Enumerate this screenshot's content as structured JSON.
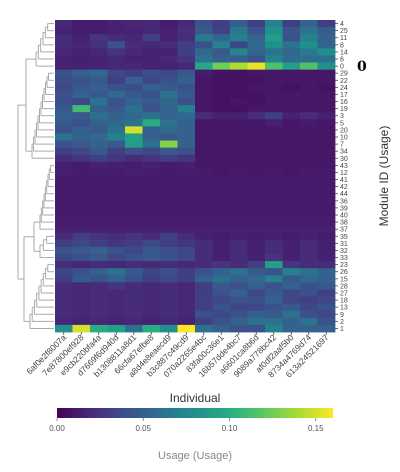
{
  "chart_data": {
    "type": "heatmap",
    "xlabel": "Individual",
    "ylabel": "Module ID (Usage)",
    "x_tick_labels": [
      "6af0e2f8007a",
      "7e87800ef928",
      "e9cb220bfa4a",
      "d7669f6d940d",
      "b1308811a8d1",
      "66cfa67efbe8",
      "a8d4e8eaecd9",
      "b3c887c49cd9",
      "070a2265e4bc",
      "83fa00c36e1",
      "16b57dde4bc7",
      "a6601ca8b6d",
      "9089a778bc42",
      "af0df2aaf5b0",
      "8734a4769d74",
      "613a24521697"
    ],
    "rows": [
      "4",
      "25",
      "11",
      "8",
      "14",
      "6",
      "0",
      "29",
      "22",
      "24",
      "17",
      "16",
      "19",
      "3",
      "5",
      "20",
      "10",
      "7",
      "34",
      "30",
      "43",
      "12",
      "41",
      "42",
      "44",
      "36",
      "39",
      "40",
      "38",
      "37",
      "35",
      "31",
      "32",
      "33",
      "23",
      "26",
      "15",
      "28",
      "27",
      "18",
      "13",
      "9",
      "2",
      "1"
    ],
    "highlight_row": "0",
    "colorbar": {
      "title": "Usage (Usage)",
      "min": 0.0,
      "max": 0.16,
      "ticks": [
        "0.00",
        "0.05",
        "0.10",
        "0.15"
      ],
      "colorscale": "viridis"
    },
    "values": [
      [
        0.018,
        0.012,
        0.013,
        0.016,
        0.017,
        0.018,
        0.013,
        0.018,
        0.04,
        0.03,
        0.048,
        0.03,
        0.07,
        0.03,
        0.052,
        0.03
      ],
      [
        0.016,
        0.013,
        0.013,
        0.015,
        0.016,
        0.017,
        0.014,
        0.022,
        0.045,
        0.032,
        0.065,
        0.04,
        0.08,
        0.042,
        0.062,
        0.048
      ],
      [
        0.02,
        0.015,
        0.025,
        0.02,
        0.018,
        0.03,
        0.016,
        0.02,
        0.065,
        0.055,
        0.07,
        0.052,
        0.088,
        0.04,
        0.07,
        0.05
      ],
      [
        0.02,
        0.017,
        0.022,
        0.04,
        0.02,
        0.018,
        0.02,
        0.03,
        0.04,
        0.07,
        0.035,
        0.055,
        0.08,
        0.06,
        0.08,
        0.052
      ],
      [
        0.018,
        0.016,
        0.018,
        0.025,
        0.018,
        0.016,
        0.016,
        0.03,
        0.055,
        0.045,
        0.072,
        0.052,
        0.062,
        0.055,
        0.066,
        0.078
      ],
      [
        0.016,
        0.014,
        0.016,
        0.018,
        0.016,
        0.015,
        0.018,
        0.025,
        0.06,
        0.05,
        0.048,
        0.04,
        0.07,
        0.056,
        0.058,
        0.06
      ],
      [
        0.016,
        0.016,
        0.016,
        0.018,
        0.018,
        0.016,
        0.016,
        0.018,
        0.095,
        0.125,
        0.14,
        0.155,
        0.115,
        0.09,
        0.115,
        0.08
      ],
      [
        0.04,
        0.05,
        0.055,
        0.035,
        0.03,
        0.04,
        0.035,
        0.045,
        0.012,
        0.008,
        0.008,
        0.01,
        0.01,
        0.01,
        0.01,
        0.01
      ],
      [
        0.038,
        0.04,
        0.045,
        0.03,
        0.05,
        0.035,
        0.04,
        0.05,
        0.01,
        0.008,
        0.008,
        0.008,
        0.01,
        0.01,
        0.01,
        0.01
      ],
      [
        0.035,
        0.045,
        0.05,
        0.04,
        0.038,
        0.05,
        0.045,
        0.04,
        0.01,
        0.008,
        0.008,
        0.01,
        0.01,
        0.008,
        0.01,
        0.008
      ],
      [
        0.04,
        0.05,
        0.045,
        0.055,
        0.045,
        0.04,
        0.06,
        0.045,
        0.01,
        0.008,
        0.008,
        0.008,
        0.01,
        0.01,
        0.01,
        0.01
      ],
      [
        0.04,
        0.035,
        0.06,
        0.04,
        0.05,
        0.045,
        0.055,
        0.04,
        0.01,
        0.008,
        0.01,
        0.008,
        0.01,
        0.01,
        0.01,
        0.01
      ],
      [
        0.045,
        0.11,
        0.05,
        0.045,
        0.06,
        0.04,
        0.05,
        0.07,
        0.01,
        0.008,
        0.008,
        0.01,
        0.01,
        0.01,
        0.01,
        0.01
      ],
      [
        0.05,
        0.045,
        0.06,
        0.05,
        0.055,
        0.06,
        0.05,
        0.055,
        0.02,
        0.015,
        0.015,
        0.02,
        0.03,
        0.015,
        0.02,
        0.015
      ],
      [
        0.045,
        0.04,
        0.05,
        0.055,
        0.06,
        0.1,
        0.06,
        0.05,
        0.01,
        0.01,
        0.01,
        0.01,
        0.015,
        0.01,
        0.012,
        0.01
      ],
      [
        0.04,
        0.05,
        0.045,
        0.06,
        0.15,
        0.05,
        0.055,
        0.05,
        0.01,
        0.01,
        0.01,
        0.01,
        0.01,
        0.01,
        0.01,
        0.01
      ],
      [
        0.06,
        0.05,
        0.055,
        0.07,
        0.09,
        0.05,
        0.045,
        0.05,
        0.01,
        0.01,
        0.01,
        0.01,
        0.01,
        0.01,
        0.01,
        0.01
      ],
      [
        0.04,
        0.045,
        0.05,
        0.045,
        0.09,
        0.06,
        0.13,
        0.05,
        0.01,
        0.01,
        0.01,
        0.01,
        0.01,
        0.01,
        0.01,
        0.01
      ],
      [
        0.03,
        0.035,
        0.045,
        0.03,
        0.04,
        0.035,
        0.045,
        0.04,
        0.01,
        0.01,
        0.01,
        0.01,
        0.01,
        0.01,
        0.01,
        0.01
      ],
      [
        0.02,
        0.025,
        0.03,
        0.025,
        0.02,
        0.025,
        0.03,
        0.025,
        0.01,
        0.01,
        0.01,
        0.01,
        0.01,
        0.01,
        0.01,
        0.01
      ],
      [
        0.015,
        0.012,
        0.015,
        0.014,
        0.013,
        0.015,
        0.012,
        0.014,
        0.01,
        0.01,
        0.01,
        0.01,
        0.01,
        0.01,
        0.01,
        0.01
      ],
      [
        0.014,
        0.012,
        0.013,
        0.012,
        0.014,
        0.013,
        0.012,
        0.013,
        0.012,
        0.01,
        0.012,
        0.01,
        0.012,
        0.01,
        0.012,
        0.012
      ],
      [
        0.012,
        0.012,
        0.012,
        0.012,
        0.012,
        0.012,
        0.012,
        0.012,
        0.012,
        0.012,
        0.012,
        0.012,
        0.012,
        0.012,
        0.012,
        0.012
      ],
      [
        0.012,
        0.012,
        0.012,
        0.012,
        0.012,
        0.012,
        0.012,
        0.012,
        0.012,
        0.012,
        0.012,
        0.012,
        0.012,
        0.012,
        0.012,
        0.012
      ],
      [
        0.012,
        0.012,
        0.012,
        0.012,
        0.012,
        0.012,
        0.012,
        0.012,
        0.012,
        0.012,
        0.012,
        0.012,
        0.012,
        0.012,
        0.012,
        0.012
      ],
      [
        0.012,
        0.012,
        0.012,
        0.012,
        0.012,
        0.012,
        0.012,
        0.012,
        0.012,
        0.012,
        0.012,
        0.012,
        0.012,
        0.012,
        0.012,
        0.012
      ],
      [
        0.012,
        0.012,
        0.012,
        0.012,
        0.012,
        0.012,
        0.012,
        0.012,
        0.012,
        0.012,
        0.012,
        0.012,
        0.012,
        0.012,
        0.012,
        0.012
      ],
      [
        0.012,
        0.012,
        0.012,
        0.012,
        0.012,
        0.012,
        0.012,
        0.012,
        0.012,
        0.012,
        0.012,
        0.012,
        0.012,
        0.012,
        0.012,
        0.012
      ],
      [
        0.012,
        0.012,
        0.012,
        0.012,
        0.012,
        0.012,
        0.012,
        0.012,
        0.012,
        0.012,
        0.012,
        0.012,
        0.012,
        0.012,
        0.012,
        0.012
      ],
      [
        0.014,
        0.014,
        0.014,
        0.014,
        0.014,
        0.014,
        0.014,
        0.014,
        0.014,
        0.014,
        0.014,
        0.014,
        0.014,
        0.014,
        0.014,
        0.014
      ],
      [
        0.02,
        0.03,
        0.025,
        0.02,
        0.025,
        0.02,
        0.03,
        0.02,
        0.015,
        0.012,
        0.015,
        0.012,
        0.015,
        0.012,
        0.015,
        0.012
      ],
      [
        0.03,
        0.035,
        0.03,
        0.025,
        0.03,
        0.035,
        0.03,
        0.025,
        0.02,
        0.015,
        0.02,
        0.015,
        0.02,
        0.015,
        0.02,
        0.015
      ],
      [
        0.04,
        0.045,
        0.05,
        0.04,
        0.035,
        0.045,
        0.04,
        0.035,
        0.02,
        0.015,
        0.02,
        0.015,
        0.02,
        0.015,
        0.02,
        0.015
      ],
      [
        0.035,
        0.04,
        0.045,
        0.035,
        0.04,
        0.045,
        0.04,
        0.035,
        0.02,
        0.015,
        0.02,
        0.015,
        0.025,
        0.015,
        0.02,
        0.015
      ],
      [
        0.02,
        0.018,
        0.02,
        0.018,
        0.02,
        0.018,
        0.02,
        0.018,
        0.02,
        0.025,
        0.02,
        0.03,
        0.09,
        0.025,
        0.02,
        0.02
      ],
      [
        0.035,
        0.04,
        0.05,
        0.06,
        0.045,
        0.035,
        0.04,
        0.03,
        0.04,
        0.05,
        0.06,
        0.045,
        0.04,
        0.07,
        0.06,
        0.05
      ],
      [
        0.03,
        0.045,
        0.04,
        0.05,
        0.04,
        0.03,
        0.035,
        0.03,
        0.05,
        0.06,
        0.05,
        0.055,
        0.07,
        0.045,
        0.055,
        0.05
      ],
      [
        0.02,
        0.018,
        0.02,
        0.025,
        0.02,
        0.018,
        0.02,
        0.018,
        0.03,
        0.045,
        0.04,
        0.05,
        0.04,
        0.05,
        0.04,
        0.045
      ],
      [
        0.02,
        0.018,
        0.02,
        0.018,
        0.02,
        0.018,
        0.02,
        0.018,
        0.03,
        0.04,
        0.05,
        0.035,
        0.045,
        0.035,
        0.04,
        0.03
      ],
      [
        0.02,
        0.018,
        0.02,
        0.018,
        0.02,
        0.018,
        0.02,
        0.018,
        0.03,
        0.035,
        0.04,
        0.04,
        0.05,
        0.035,
        0.03,
        0.035
      ],
      [
        0.02,
        0.018,
        0.02,
        0.018,
        0.02,
        0.018,
        0.02,
        0.018,
        0.03,
        0.04,
        0.035,
        0.035,
        0.04,
        0.045,
        0.035,
        0.04
      ],
      [
        0.02,
        0.018,
        0.02,
        0.018,
        0.02,
        0.018,
        0.02,
        0.018,
        0.04,
        0.035,
        0.04,
        0.05,
        0.045,
        0.06,
        0.04,
        0.035
      ],
      [
        0.018,
        0.016,
        0.018,
        0.016,
        0.018,
        0.016,
        0.018,
        0.016,
        0.03,
        0.04,
        0.05,
        0.06,
        0.06,
        0.05,
        0.06,
        0.04
      ],
      [
        0.08,
        0.15,
        0.1,
        0.09,
        0.06,
        0.1,
        0.08,
        0.16,
        0.06,
        0.05,
        0.04,
        0.04,
        0.07,
        0.05,
        0.05,
        0.05
      ]
    ]
  }
}
